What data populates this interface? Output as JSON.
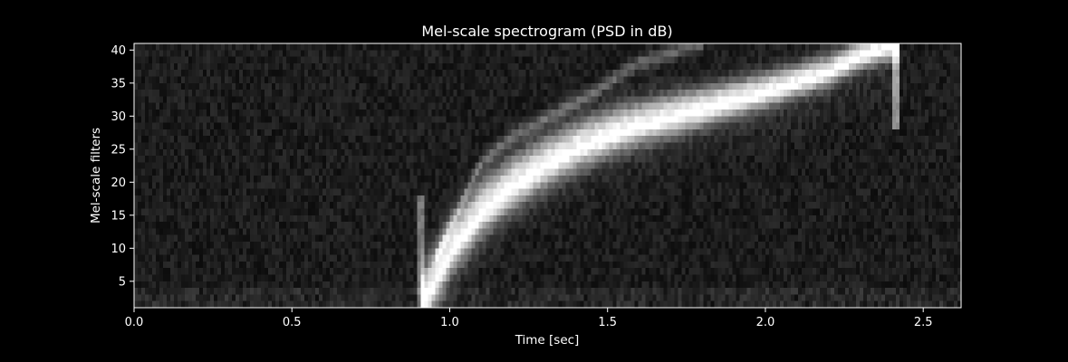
{
  "chart_data": {
    "type": "heatmap",
    "title": "Mel-scale spectrogram (PSD in dB)",
    "xlabel": "Time [sec]",
    "ylabel": "Mel-scale filters",
    "xlim": [
      0.0,
      2.62
    ],
    "ylim": [
      1,
      41
    ],
    "x_ticks": [
      0.0,
      0.5,
      1.0,
      1.5,
      2.0,
      2.5
    ],
    "x_tick_labels": [
      "0.0",
      "0.5",
      "1.0",
      "1.5",
      "2.0",
      "2.5"
    ],
    "y_ticks": [
      5,
      10,
      15,
      20,
      25,
      30,
      35,
      40
    ],
    "y_tick_labels": [
      "5",
      "10",
      "15",
      "20",
      "25",
      "30",
      "35",
      "40"
    ],
    "colormap": "gray",
    "grid": false,
    "features": {
      "onset_time_sec": 0.91,
      "main_sweep": [
        [
          0.91,
          2
        ],
        [
          1.0,
          10
        ],
        [
          1.1,
          16
        ],
        [
          1.2,
          20
        ],
        [
          1.3,
          23
        ],
        [
          1.4,
          25.5
        ],
        [
          1.5,
          27.5
        ],
        [
          1.6,
          29
        ],
        [
          1.8,
          31.5
        ],
        [
          2.0,
          34
        ],
        [
          2.2,
          37
        ],
        [
          2.3,
          39.5
        ],
        [
          2.4,
          41
        ]
      ],
      "harmonic_sweep": [
        [
          0.95,
          8
        ],
        [
          1.1,
          23
        ],
        [
          1.2,
          27
        ],
        [
          1.4,
          32
        ],
        [
          1.6,
          38
        ],
        [
          1.8,
          41
        ]
      ],
      "impulse_time_sec": 2.41
    }
  },
  "colors": {
    "background": "#000000",
    "foreground": "#ffffff"
  }
}
